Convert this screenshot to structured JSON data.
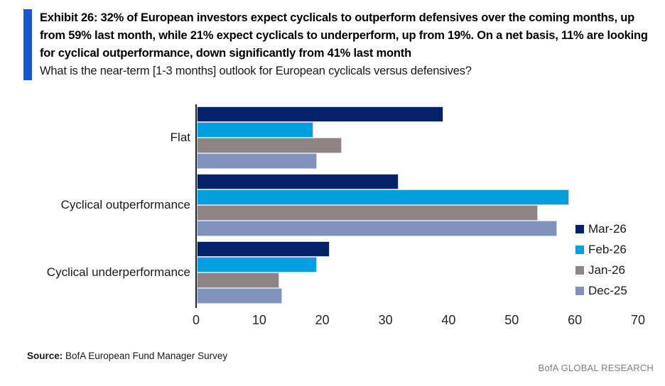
{
  "header": {
    "exhibit_title": "Exhibit 26: 32% of European investors expect cyclicals to outperform defensives over the coming months, up from 59% last month, while 21% expect cyclicals to underperform, up from 19%. On a net basis, 11% are looking for cyclical outperformance, down significantly from 41% last month",
    "subtitle": "What is the near-term [1-3 months] outlook for European cyclicals versus defensives?",
    "accent_color": "#1758D2"
  },
  "chart_data": {
    "type": "bar",
    "orientation": "horizontal",
    "title": "What is the near-term [1-3 months] outlook for European cyclicals versus defensives?",
    "categories": [
      "Flat",
      "Cyclical outperformance",
      "Cyclical underperformance"
    ],
    "series": [
      {
        "name": "Mar-26",
        "color": "#042169",
        "values": [
          39,
          32,
          21
        ]
      },
      {
        "name": "Feb-26",
        "color": "#009FE0",
        "values": [
          18.5,
          59,
          19
        ]
      },
      {
        "name": "Jan-26",
        "color": "#8E8484",
        "values": [
          23,
          54,
          13
        ]
      },
      {
        "name": "Dec-25",
        "color": "#8193BC",
        "values": [
          19,
          57,
          13.5
        ]
      }
    ],
    "xlabel": "",
    "ylabel": "",
    "xlim": [
      0,
      70
    ],
    "x_ticks": [
      0,
      10,
      20,
      30,
      40,
      50,
      60,
      70
    ],
    "legend_position": "right",
    "grid": false
  },
  "footer": {
    "source_label": "Source:",
    "source_text": " BofA European Fund Manager Survey",
    "branding": "BofA GLOBAL RESEARCH"
  }
}
